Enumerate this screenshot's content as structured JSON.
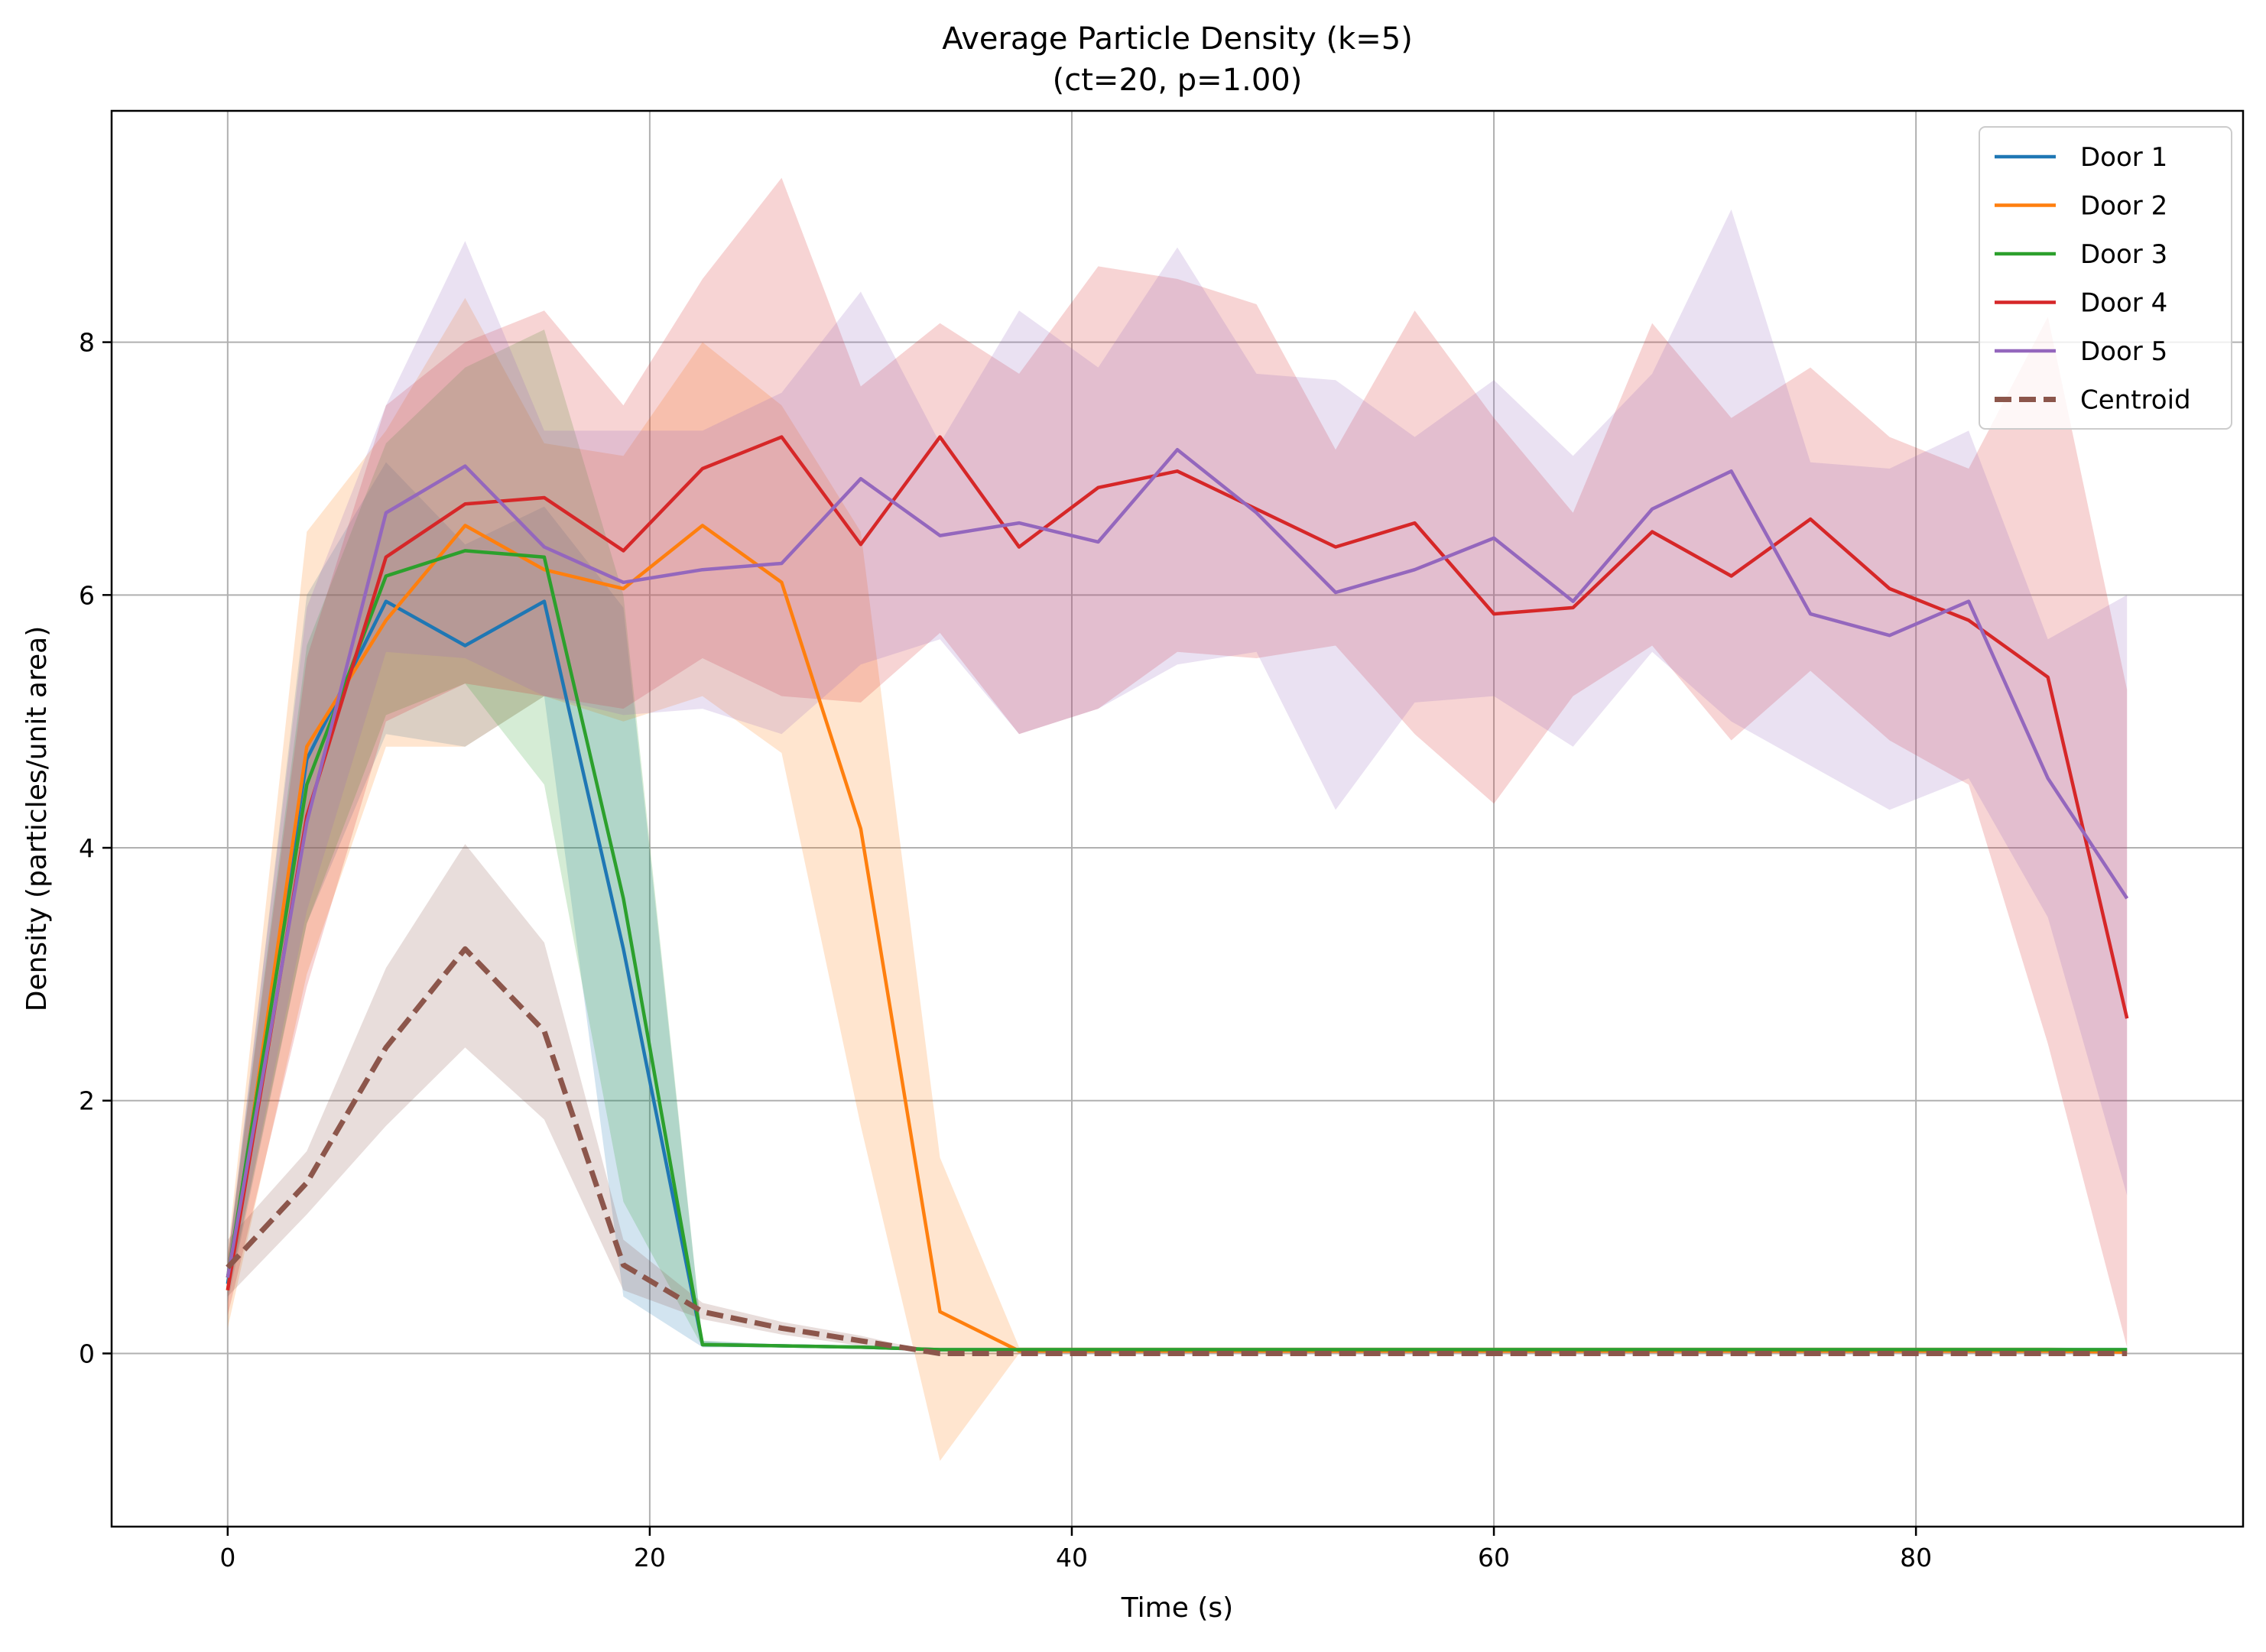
{
  "chart_data": {
    "type": "line",
    "title": "Average Particle Density (k=5)",
    "subtitle": "(ct=20, p=1.00)",
    "xlabel": "Time (s)",
    "ylabel": "Density (particles/unit area)",
    "xlim": [
      -5.5,
      95.5
    ],
    "ylim": [
      -1.37,
      9.83
    ],
    "xticks": [
      0,
      20,
      40,
      60,
      80
    ],
    "yticks": [
      0,
      2,
      4,
      6,
      8
    ],
    "xtick_labels": [
      "0",
      "20",
      "40",
      "60",
      "80"
    ],
    "ytick_labels": [
      "0",
      "2",
      "4",
      "6",
      "8"
    ],
    "grid": true,
    "legend_position": "top-right",
    "x": [
      0,
      3.75,
      7.5,
      11.25,
      15,
      18.75,
      22.5,
      26.25,
      30,
      33.75,
      37.5,
      41.25,
      45,
      48.75,
      52.5,
      56.25,
      60,
      63.75,
      67.5,
      71.25,
      75,
      78.75,
      82.5,
      86.25,
      90
    ],
    "series": [
      {
        "name": "Door 1",
        "color": "#1f77b4",
        "style": "solid",
        "mean": [
          0.55,
          4.7,
          5.95,
          5.6,
          5.95,
          3.2,
          0.07,
          0.06,
          0.05,
          0.03,
          0.03,
          0.03,
          0.03,
          0.03,
          0.03,
          0.03,
          0.03,
          0.03,
          0.03,
          0.03,
          0.03,
          0.03,
          0.03,
          0.03,
          0.03
        ],
        "lower": [
          0.4,
          3.4,
          4.9,
          4.8,
          5.2,
          0.45,
          0.05,
          0.05,
          0.04,
          0.02,
          0.02,
          0.02,
          0.02,
          0.02,
          0.02,
          0.02,
          0.02,
          0.02,
          0.02,
          0.02,
          0.02,
          0.02,
          0.02,
          0.02,
          0.02
        ],
        "upper": [
          0.7,
          6.0,
          7.05,
          6.4,
          6.7,
          5.9,
          0.1,
          0.07,
          0.06,
          0.04,
          0.04,
          0.04,
          0.04,
          0.04,
          0.04,
          0.04,
          0.04,
          0.04,
          0.04,
          0.04,
          0.04,
          0.04,
          0.04,
          0.04,
          0.04
        ]
      },
      {
        "name": "Door 2",
        "color": "#ff7f0e",
        "style": "solid",
        "mean": [
          0.5,
          4.8,
          5.8,
          6.55,
          6.2,
          6.05,
          6.55,
          6.1,
          4.15,
          0.33,
          0.02,
          0.02,
          0.02,
          0.02,
          0.02,
          0.02,
          0.02,
          0.02,
          0.02,
          0.02,
          0.02,
          0.02,
          0.02,
          0.02,
          0.01
        ],
        "lower": [
          0.2,
          3.0,
          4.8,
          4.8,
          5.2,
          5.0,
          5.2,
          4.75,
          1.8,
          -0.85,
          0.0,
          0.0,
          0.0,
          0.0,
          0.0,
          0.0,
          0.0,
          0.0,
          0.0,
          0.0,
          0.0,
          0.0,
          0.0,
          0.0,
          0.0
        ],
        "upper": [
          0.8,
          6.5,
          7.3,
          8.35,
          7.2,
          7.1,
          8.0,
          7.5,
          6.5,
          1.55,
          0.05,
          0.05,
          0.05,
          0.05,
          0.05,
          0.05,
          0.05,
          0.05,
          0.05,
          0.05,
          0.05,
          0.05,
          0.05,
          0.05,
          0.03
        ]
      },
      {
        "name": "Door 3",
        "color": "#2ca02c",
        "style": "solid",
        "mean": [
          0.6,
          4.5,
          6.15,
          6.35,
          6.3,
          3.6,
          0.07,
          0.06,
          0.05,
          0.03,
          0.03,
          0.03,
          0.03,
          0.03,
          0.03,
          0.03,
          0.03,
          0.03,
          0.03,
          0.03,
          0.03,
          0.03,
          0.03,
          0.03,
          0.03
        ],
        "lower": [
          0.45,
          3.4,
          5.05,
          5.3,
          4.5,
          1.2,
          0.05,
          0.05,
          0.04,
          0.02,
          0.02,
          0.02,
          0.02,
          0.02,
          0.02,
          0.02,
          0.02,
          0.02,
          0.02,
          0.02,
          0.02,
          0.02,
          0.02,
          0.02,
          0.02
        ],
        "upper": [
          0.75,
          5.6,
          7.2,
          7.8,
          8.1,
          6.0,
          0.1,
          0.07,
          0.06,
          0.04,
          0.04,
          0.04,
          0.04,
          0.04,
          0.04,
          0.04,
          0.04,
          0.04,
          0.04,
          0.04,
          0.04,
          0.04,
          0.04,
          0.04,
          0.04
        ]
      },
      {
        "name": "Door 4",
        "color": "#d62728",
        "style": "solid",
        "mean": [
          0.5,
          4.25,
          6.3,
          6.72,
          6.77,
          6.35,
          7.0,
          7.25,
          6.4,
          7.25,
          6.38,
          6.85,
          6.98,
          6.68,
          6.38,
          6.57,
          5.85,
          5.9,
          6.5,
          6.15,
          6.6,
          6.05,
          5.8,
          5.35,
          2.65
        ],
        "lower": [
          0.3,
          2.9,
          5.0,
          5.3,
          5.2,
          5.1,
          5.5,
          5.2,
          5.15,
          5.7,
          4.9,
          5.1,
          5.55,
          5.5,
          5.6,
          4.9,
          4.35,
          5.2,
          5.6,
          4.85,
          5.4,
          4.85,
          4.5,
          2.45,
          0.05
        ],
        "upper": [
          0.75,
          5.5,
          7.5,
          8.0,
          8.25,
          7.5,
          8.5,
          9.3,
          7.65,
          8.15,
          7.75,
          8.6,
          8.5,
          8.3,
          7.15,
          8.25,
          7.4,
          6.65,
          8.15,
          7.4,
          7.8,
          7.25,
          7.0,
          8.2,
          5.25
        ]
      },
      {
        "name": "Door 5",
        "color": "#9467bd",
        "style": "solid",
        "mean": [
          0.6,
          4.2,
          6.65,
          7.02,
          6.38,
          6.1,
          6.2,
          6.25,
          6.92,
          6.47,
          6.57,
          6.42,
          7.15,
          6.65,
          6.02,
          6.2,
          6.45,
          5.95,
          6.68,
          6.98,
          5.85,
          5.68,
          5.95,
          4.55,
          3.6
        ],
        "lower": [
          0.45,
          3.5,
          5.55,
          5.5,
          5.2,
          5.05,
          5.1,
          4.9,
          5.45,
          5.65,
          4.9,
          5.1,
          5.45,
          5.55,
          4.3,
          5.15,
          5.2,
          4.8,
          5.55,
          5.0,
          4.65,
          4.3,
          4.55,
          3.45,
          1.25
        ],
        "upper": [
          0.75,
          5.9,
          7.5,
          8.8,
          7.3,
          7.3,
          7.3,
          7.6,
          8.4,
          7.2,
          8.25,
          7.8,
          8.75,
          7.75,
          7.7,
          7.25,
          7.7,
          7.1,
          7.75,
          9.05,
          7.05,
          7.0,
          7.3,
          5.65,
          6.0
        ]
      },
      {
        "name": "Centroid",
        "color": "#8c564b",
        "style": "dashed",
        "mean": [
          0.68,
          1.35,
          2.42,
          3.2,
          2.55,
          0.7,
          0.33,
          0.2,
          0.1,
          0.0,
          0.0,
          0.0,
          0.0,
          0.0,
          0.0,
          0.0,
          0.0,
          0.0,
          0.0,
          0.0,
          0.0,
          0.0,
          0.0,
          0.0,
          0.0
        ],
        "lower": [
          0.45,
          1.1,
          1.8,
          2.42,
          1.85,
          0.5,
          0.27,
          0.15,
          0.06,
          0.0,
          0.0,
          0.0,
          0.0,
          0.0,
          0.0,
          0.0,
          0.0,
          0.0,
          0.0,
          0.0,
          0.0,
          0.0,
          0.0,
          0.0,
          0.0
        ],
        "upper": [
          0.9,
          1.6,
          3.05,
          4.03,
          3.25,
          0.9,
          0.4,
          0.25,
          0.14,
          0.0,
          0.0,
          0.0,
          0.0,
          0.0,
          0.0,
          0.0,
          0.0,
          0.0,
          0.0,
          0.0,
          0.0,
          0.0,
          0.0,
          0.0,
          0.0
        ]
      }
    ]
  }
}
